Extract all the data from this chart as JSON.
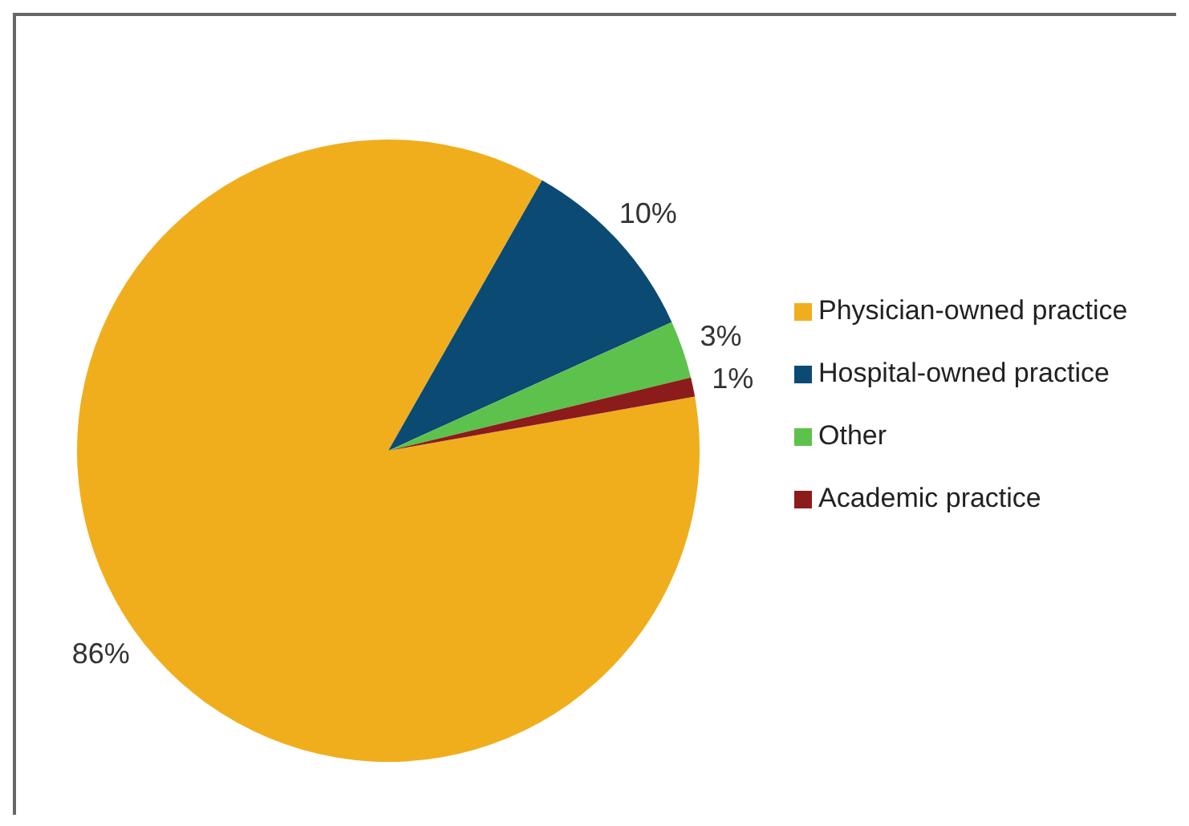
{
  "chart_data": {
    "type": "pie",
    "categories": [
      "Physician-owned practice",
      "Hospital-owned practice",
      "Other",
      "Academic practice"
    ],
    "values": [
      86,
      10,
      3,
      1
    ],
    "colors": [
      "#f0ae1d",
      "#0b4a72",
      "#5dc24b",
      "#8c1b1b"
    ],
    "value_labels": [
      "86%",
      "10%",
      "3%",
      "1%"
    ],
    "legend": "right"
  }
}
